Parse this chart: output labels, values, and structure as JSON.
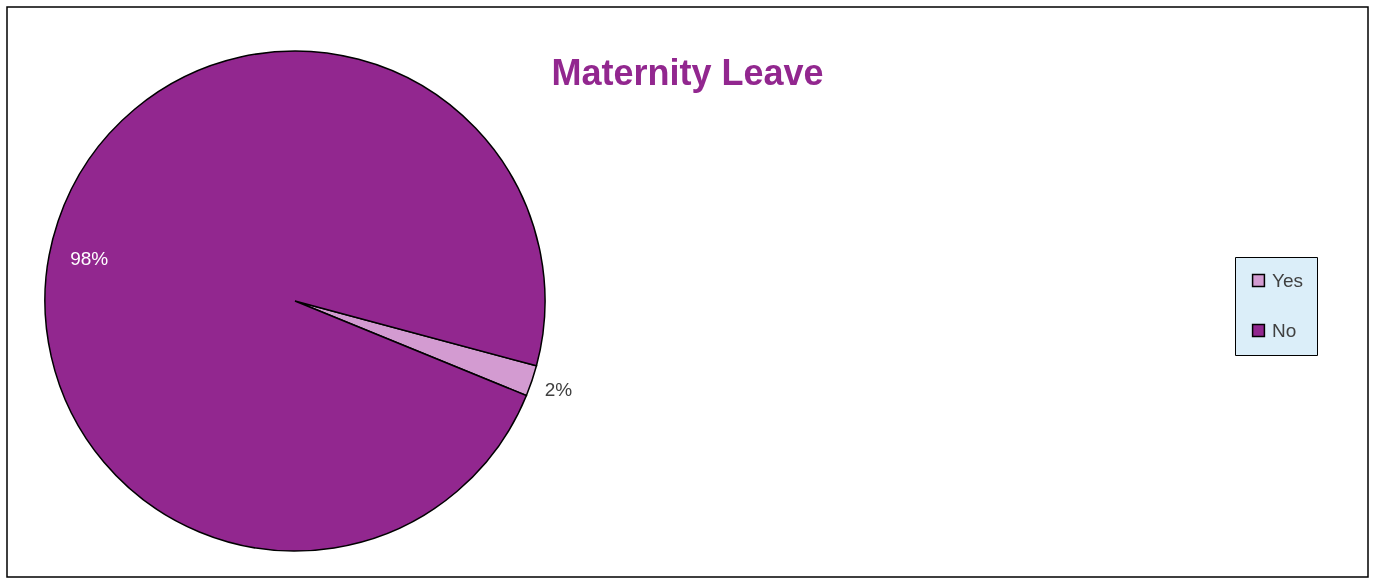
{
  "chart_data": {
    "type": "pie",
    "title": "Maternity Leave",
    "categories": [
      "Yes",
      "No"
    ],
    "values": [
      2,
      98
    ],
    "colors": [
      "#d39bd1",
      "#92278f"
    ],
    "value_labels": [
      "2%",
      "98%"
    ],
    "legend": "right"
  }
}
